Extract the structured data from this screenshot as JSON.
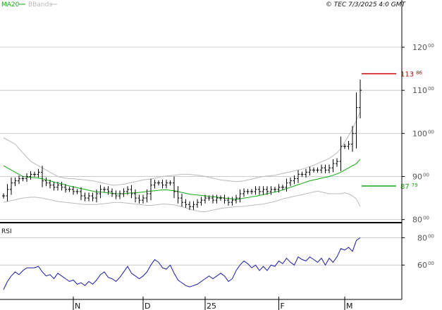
{
  "header": {
    "legend_ma": "MA20",
    "legend_bb": "BBands",
    "stamp": "© TEC 7/3/2025 4:0 GMT"
  },
  "rsi_panel": {
    "label": "RSI"
  },
  "colors": {
    "candle": "#000000",
    "ma": "#11aa11",
    "band": "#bbbbbb",
    "rsi": "#1a1aa6",
    "level_red": "#cc0000",
    "level_green": "#11aa11",
    "grid": "#cccccc",
    "axis": "#000000"
  },
  "chart_data": [
    {
      "type": "ohlc",
      "name": "price",
      "ylim": [
        7700,
        12900
      ],
      "y_ticks": [
        {
          "value": 8000,
          "main": "80",
          "sup": "00"
        },
        {
          "value": 9000,
          "main": "90",
          "sup": "00"
        },
        {
          "value": 10000,
          "main": "100",
          "sup": "00"
        },
        {
          "value": 11000,
          "main": "110",
          "sup": "00"
        },
        {
          "value": 12000,
          "main": "120",
          "sup": "00"
        }
      ],
      "x_ticks": [
        {
          "index": 18,
          "label": "N"
        },
        {
          "index": 36,
          "label": "D"
        },
        {
          "index": 52,
          "label": "25"
        },
        {
          "index": 71,
          "label": "F"
        },
        {
          "index": 88,
          "label": "M"
        }
      ],
      "levels": [
        {
          "value": 11386,
          "main": "113",
          "sup": "86",
          "color": "#cc0000"
        },
        {
          "value": 8779,
          "main": "87",
          "sup": "79",
          "color": "#11aa11"
        }
      ],
      "close": [
        8550,
        8700,
        8850,
        8900,
        8950,
        8950,
        9000,
        9050,
        9050,
        9100,
        8900,
        8850,
        8800,
        8750,
        8800,
        8750,
        8700,
        8700,
        8650,
        8650,
        8550,
        8500,
        8550,
        8500,
        8600,
        8700,
        8700,
        8650,
        8600,
        8550,
        8600,
        8650,
        8700,
        8600,
        8500,
        8450,
        8500,
        8600,
        8800,
        8850,
        8850,
        8800,
        8850,
        8850,
        8650,
        8500,
        8400,
        8350,
        8300,
        8350,
        8400,
        8450,
        8500,
        8500,
        8450,
        8500,
        8500,
        8450,
        8400,
        8450,
        8500,
        8600,
        8650,
        8650,
        8650,
        8700,
        8650,
        8700,
        8650,
        8700,
        8700,
        8750,
        8750,
        8850,
        8900,
        8950,
        9050,
        9050,
        9100,
        9150,
        9150,
        9150,
        9200,
        9150,
        9200,
        9300,
        9350,
        9700,
        9700,
        9750,
        10000,
        10600,
        11000
      ],
      "ma20": [
        9250,
        9200,
        9150,
        9100,
        9050,
        9000,
        8990,
        8980,
        8970,
        8960,
        8950,
        8920,
        8900,
        8870,
        8850,
        8830,
        8800,
        8780,
        8760,
        8740,
        8720,
        8700,
        8680,
        8660,
        8640,
        8640,
        8630,
        8620,
        8610,
        8600,
        8600,
        8600,
        8610,
        8620,
        8620,
        8630,
        8640,
        8650,
        8660,
        8670,
        8680,
        8690,
        8690,
        8680,
        8670,
        8650,
        8630,
        8610,
        8590,
        8580,
        8570,
        8560,
        8550,
        8540,
        8530,
        8520,
        8510,
        8500,
        8490,
        8480,
        8470,
        8480,
        8500,
        8510,
        8530,
        8540,
        8560,
        8580,
        8600,
        8620,
        8640,
        8660,
        8690,
        8720,
        8750,
        8780,
        8810,
        8840,
        8870,
        8900,
        8920,
        8940,
        8960,
        8980,
        9000,
        9030,
        9060,
        9100,
        9150,
        9200,
        9250,
        9300,
        9400
      ],
      "bb_upper": [
        9900,
        9850,
        9800,
        9750,
        9650,
        9550,
        9450,
        9350,
        9300,
        9250,
        9200,
        9150,
        9100,
        9050,
        9000,
        8980,
        8960,
        8950,
        8950,
        8940,
        8930,
        8920,
        8910,
        8900,
        8880,
        8860,
        8840,
        8820,
        8800,
        8800,
        8810,
        8820,
        8840,
        8860,
        8880,
        8900,
        8920,
        8930,
        8940,
        8960,
        8980,
        9000,
        9010,
        9020,
        9030,
        9040,
        9050,
        9050,
        9050,
        9040,
        9030,
        9020,
        9000,
        8980,
        8960,
        8940,
        8920,
        8910,
        8900,
        8890,
        8880,
        8890,
        8900,
        8920,
        8940,
        8960,
        8980,
        9000,
        9010,
        9020,
        9030,
        9050,
        9070,
        9090,
        9110,
        9130,
        9150,
        9170,
        9200,
        9230,
        9260,
        9300,
        9340,
        9380,
        9420,
        9480,
        9550,
        9650,
        9800,
        9950,
        10100,
        10300,
        10500
      ],
      "bb_lower": [
        8400,
        8420,
        8440,
        8460,
        8480,
        8500,
        8510,
        8520,
        8520,
        8510,
        8500,
        8480,
        8460,
        8440,
        8420,
        8410,
        8400,
        8390,
        8380,
        8370,
        8360,
        8350,
        8350,
        8350,
        8350,
        8360,
        8370,
        8380,
        8390,
        8400,
        8400,
        8390,
        8380,
        8370,
        8360,
        8350,
        8340,
        8330,
        8330,
        8340,
        8350,
        8360,
        8360,
        8350,
        8340,
        8320,
        8300,
        8270,
        8240,
        8220,
        8200,
        8180,
        8180,
        8200,
        8220,
        8240,
        8260,
        8270,
        8280,
        8290,
        8300,
        8300,
        8310,
        8320,
        8330,
        8340,
        8350,
        8360,
        8380,
        8400,
        8420,
        8450,
        8480,
        8500,
        8520,
        8540,
        8560,
        8580,
        8600,
        8620,
        8640,
        8660,
        8640,
        8620,
        8600,
        8600,
        8600,
        8600,
        8620,
        8600,
        8550,
        8480,
        8300
      ]
    },
    {
      "type": "line",
      "name": "RSI",
      "ylim": [
        40,
        90
      ],
      "y_ticks": [
        {
          "value": 60,
          "main": "60",
          "sup": "00"
        },
        {
          "value": 80,
          "main": "80",
          "sup": "00"
        }
      ],
      "values": [
        42,
        48,
        52,
        55,
        53,
        56,
        58,
        58,
        58,
        59,
        55,
        52,
        53,
        50,
        54,
        52,
        50,
        48,
        49,
        46,
        47,
        45,
        48,
        46,
        49,
        53,
        55,
        51,
        50,
        48,
        51,
        55,
        59,
        54,
        52,
        50,
        52,
        55,
        60,
        64,
        62,
        58,
        57,
        60,
        54,
        49,
        47,
        45,
        44,
        45,
        46,
        48,
        50,
        52,
        50,
        52,
        54,
        52,
        48,
        50,
        56,
        60,
        63,
        61,
        58,
        60,
        56,
        59,
        56,
        60,
        59,
        63,
        61,
        65,
        62,
        60,
        66,
        64,
        63,
        66,
        64,
        62,
        65,
        60,
        65,
        62,
        66,
        72,
        71,
        73,
        70,
        78,
        80
      ]
    }
  ]
}
